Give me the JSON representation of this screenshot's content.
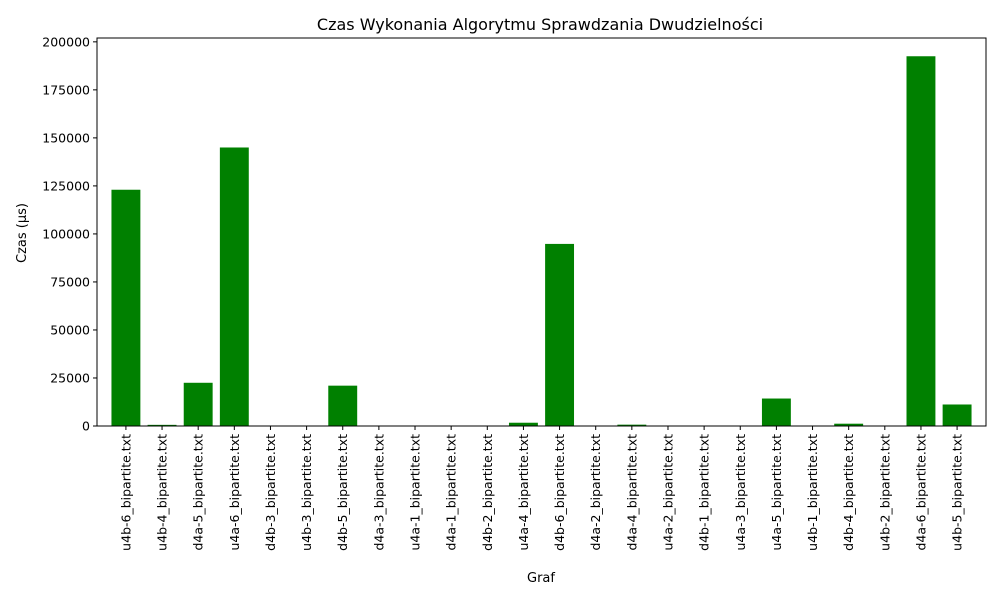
{
  "chart_data": {
    "type": "bar",
    "title": "Czas Wykonania Algorytmu Sprawdzania Dwudzielności",
    "xlabel": "Graf",
    "ylabel": "Czas (µs)",
    "ylim": [
      0,
      202000
    ],
    "yticks": [
      0,
      25000,
      50000,
      75000,
      100000,
      125000,
      150000,
      175000,
      200000
    ],
    "bar_color": "#008000",
    "grid": false,
    "categories": [
      "u4b-6_bipartite.txt",
      "u4b-4_bipartite.txt",
      "d4a-5_bipartite.txt",
      "u4a-6_bipartite.txt",
      "d4b-3_bipartite.txt",
      "u4b-3_bipartite.txt",
      "d4b-5_bipartite.txt",
      "d4a-3_bipartite.txt",
      "u4a-1_bipartite.txt",
      "d4a-1_bipartite.txt",
      "d4b-2_bipartite.txt",
      "u4a-4_bipartite.txt",
      "d4b-6_bipartite.txt",
      "d4a-2_bipartite.txt",
      "d4a-4_bipartite.txt",
      "u4a-2_bipartite.txt",
      "d4b-1_bipartite.txt",
      "u4a-3_bipartite.txt",
      "u4a-5_bipartite.txt",
      "u4b-1_bipartite.txt",
      "d4b-4_bipartite.txt",
      "u4b-2_bipartite.txt",
      "d4a-6_bipartite.txt",
      "u4b-5_bipartite.txt"
    ],
    "values": [
      123000,
      600,
      22500,
      145000,
      100,
      100,
      21000,
      100,
      100,
      100,
      100,
      1700,
      94800,
      100,
      700,
      100,
      100,
      100,
      14300,
      100,
      1200,
      100,
      192500,
      11200
    ]
  }
}
